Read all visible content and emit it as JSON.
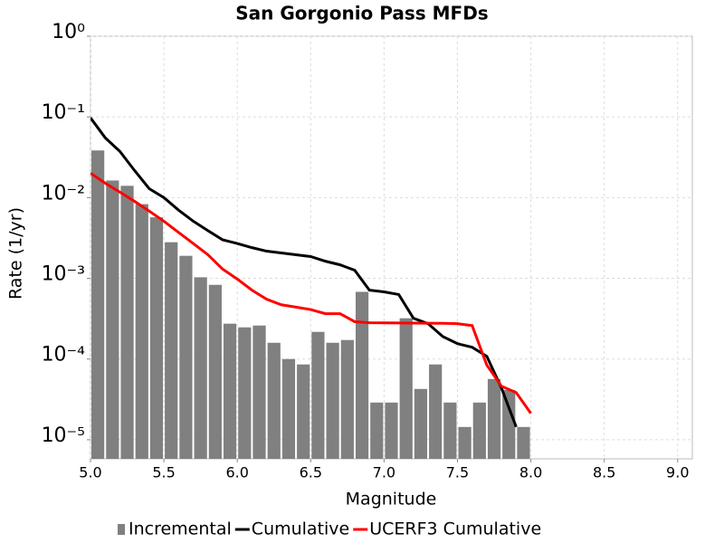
{
  "chart_data": {
    "type": "combo",
    "title": "San Gorgonio Pass MFDs",
    "x_label": "Magnitude",
    "y_label": "Rate (1/yr)",
    "xlim": [
      5.0,
      9.1
    ],
    "ylim": [
      5.8e-06,
      1
    ],
    "y_log": true,
    "grid": true,
    "legend": "bottom",
    "xticks": [
      {
        "value": 5.0,
        "label": "5.0"
      },
      5.5,
      {
        "value": 6.0,
        "label": "6.0"
      },
      6.5,
      {
        "value": 7.0,
        "label": "7.0"
      },
      7.5,
      {
        "value": 8.0,
        "label": "8.0"
      },
      8.5,
      {
        "value": 9.0,
        "label": "9.0"
      }
    ],
    "yticks": [
      {
        "value": 1,
        "label": "10⁰"
      },
      {
        "value": 0.1,
        "label": "10⁻¹"
      },
      {
        "value": 0.01,
        "label": "10⁻²"
      },
      {
        "value": 0.001,
        "label": "10⁻³"
      },
      {
        "value": 0.0001,
        "label": "10⁻⁴"
      },
      {
        "value": 1e-05,
        "label": "10⁻⁵"
      }
    ],
    "series": [
      {
        "name": "Incremental",
        "type": "histogram",
        "color": "#808080",
        "bins": [
          5.0,
          5.1,
          5.2,
          5.3,
          5.4,
          5.5,
          5.6,
          5.7,
          5.8,
          5.9,
          6.0,
          6.1,
          6.2,
          6.3,
          6.4,
          6.5,
          6.6,
          6.7,
          6.8,
          6.9,
          7.0,
          7.1,
          7.2,
          7.3,
          7.4,
          7.5,
          7.6,
          7.7,
          7.8,
          7.9,
          8.0
        ],
        "values": [
          0.0384,
          0.0163,
          0.014,
          0.0083,
          0.0057,
          0.0028,
          0.0019,
          0.00103,
          0.00083,
          0.000274,
          0.000247,
          0.00026,
          0.000159,
          0.0001,
          8.57e-05,
          0.000217,
          0.000159,
          0.000172,
          0.00068,
          2.89e-05,
          2.89e-05,
          0.00032,
          4.26e-05,
          8.57e-05,
          2.89e-05,
          1.44e-05,
          2.89e-05,
          5.66e-05,
          4.13e-05,
          1.44e-05
        ]
      },
      {
        "name": "Cumulative",
        "type": "line",
        "color": "#000000",
        "x": [
          5.0,
          5.1,
          5.2,
          5.3,
          5.4,
          5.5,
          5.6,
          5.7,
          5.8,
          5.9,
          6.0,
          6.1,
          6.2,
          6.3,
          6.4,
          6.5,
          6.6,
          6.7,
          6.8,
          6.9,
          7.0,
          7.1,
          7.2,
          7.3,
          7.4,
          7.5,
          7.6,
          7.7,
          7.8,
          7.9
        ],
        "values": [
          0.0975,
          0.0552,
          0.0374,
          0.0217,
          0.0129,
          0.01,
          0.007,
          0.0051,
          0.0039,
          0.003,
          0.0027,
          0.0024,
          0.00217,
          0.00206,
          0.00196,
          0.00186,
          0.00163,
          0.00147,
          0.00126,
          0.000714,
          0.00068,
          0.00063,
          0.00032,
          0.000274,
          0.00019,
          0.000155,
          0.00014,
          0.000108,
          4.37e-05,
          1.44e-05
        ]
      },
      {
        "name": "UCERF3 Cumulative",
        "type": "line",
        "color": "#ff0000",
        "x": [
          5.0,
          5.1,
          5.2,
          5.3,
          5.4,
          5.5,
          5.6,
          5.7,
          5.8,
          5.9,
          6.0,
          6.1,
          6.2,
          6.3,
          6.4,
          6.5,
          6.6,
          6.7,
          6.8,
          6.9,
          7.0,
          7.1,
          7.2,
          7.3,
          7.4,
          7.5,
          7.6,
          7.7,
          7.8,
          7.9,
          8.0
        ],
        "values": [
          0.0201,
          0.0151,
          0.0117,
          0.009,
          0.0068,
          0.0051,
          0.0037,
          0.0027,
          0.00196,
          0.0013,
          0.00098,
          0.000714,
          0.00055,
          0.00047,
          0.00044,
          0.00041,
          0.000365,
          0.000365,
          0.00029,
          0.000282,
          0.000281,
          0.00028,
          0.000279,
          0.000278,
          0.000277,
          0.000274,
          0.00026,
          8.4e-05,
          4.6e-05,
          3.84e-05,
          2.12e-05
        ]
      }
    ]
  }
}
